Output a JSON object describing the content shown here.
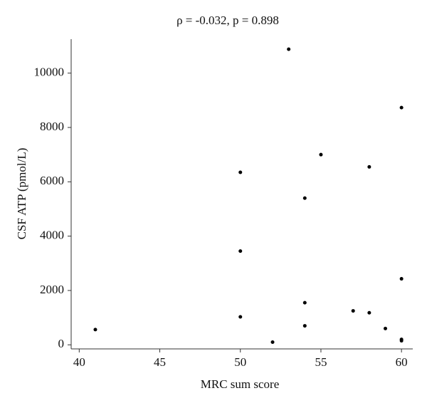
{
  "chart_data": {
    "type": "scatter",
    "title": "ρ = -0.032, p = 0.898",
    "x_label": "MRC sum score",
    "y_label": "CSF ATP (pmol/L)",
    "x": [
      41,
      50,
      50,
      50,
      52,
      53,
      54,
      54,
      54,
      55,
      57,
      58,
      58,
      59,
      60,
      60,
      60,
      60
    ],
    "values": [
      560,
      1030,
      3450,
      6350,
      100,
      10880,
      700,
      1550,
      5400,
      7000,
      1250,
      1180,
      6550,
      600,
      150,
      200,
      2430,
      8730
    ],
    "color": "#000000",
    "xlim": [
      39.5,
      60.7
    ],
    "xticks": [
      40,
      45,
      50,
      55,
      60
    ],
    "ylim": [
      -150,
      11250
    ],
    "yticks": [
      0,
      2000,
      4000,
      6000,
      8000,
      10000
    ],
    "grid": false
  }
}
